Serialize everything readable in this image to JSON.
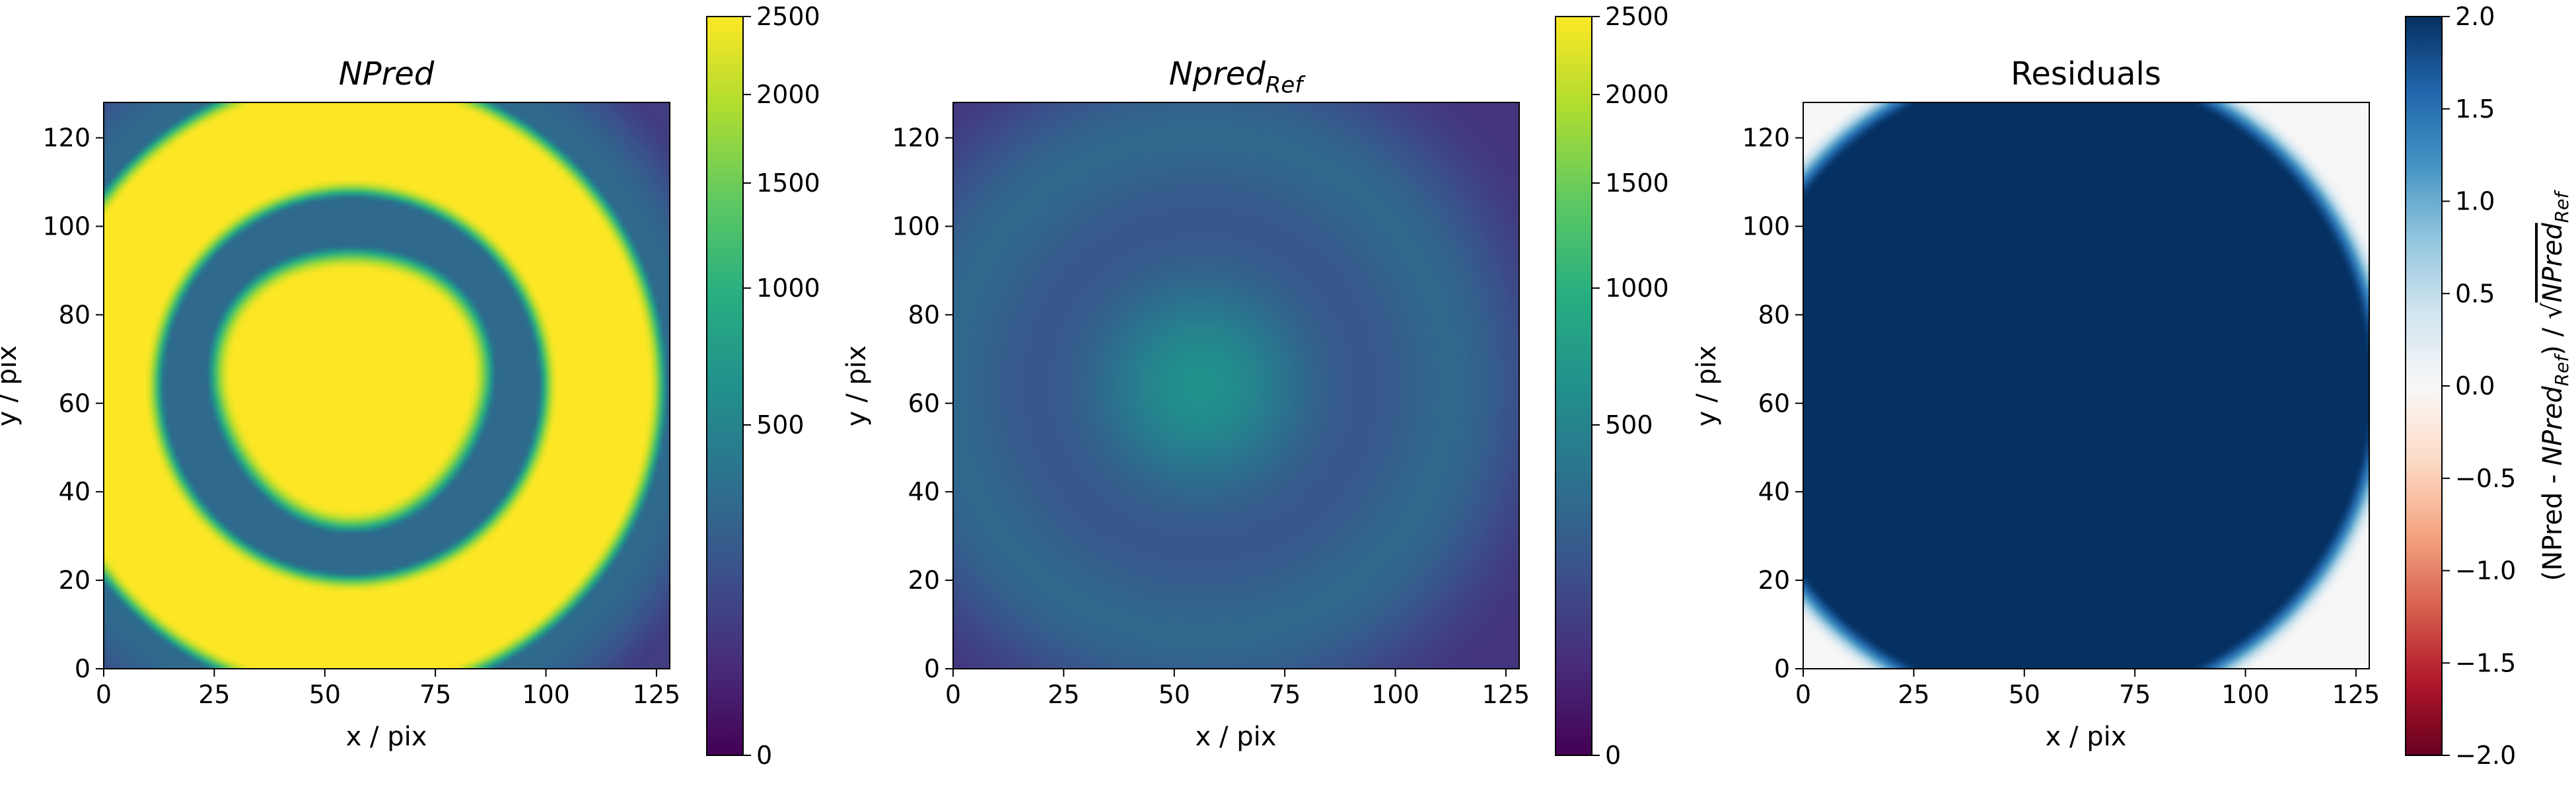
{
  "chart_data": [
    {
      "type": "heatmap",
      "title": "NPred",
      "xlabel": "x / pix",
      "ylabel": "y / pix",
      "xlim": [
        0,
        128
      ],
      "ylim": [
        0,
        128
      ],
      "x_ticks": [
        "0",
        "25",
        "50",
        "75",
        "100",
        "125"
      ],
      "y_ticks": [
        "0",
        "20",
        "40",
        "60",
        "80",
        "100",
        "120"
      ],
      "colormap": "viridis",
      "colorbar": {
        "scale": "sqrt",
        "range": [
          0,
          2500
        ],
        "ticks": [
          "0",
          "500",
          "1000",
          "1500",
          "2000",
          "2500"
        ],
        "label": ""
      },
      "grid": false,
      "description_features": {
        "center_pix": [
          56,
          64
        ],
        "inner_disk_radius_pix": 30,
        "ring_radius_pix": 57,
        "outer_edge_radius_pix": 80,
        "inner_value": 2500,
        "ring_value": 2500,
        "gap_value": 300,
        "background_value": 80
      }
    },
    {
      "type": "heatmap",
      "title": "Npred",
      "title_subscript": "Ref",
      "xlabel": "x / pix",
      "ylabel": "y / pix",
      "xlim": [
        0,
        128
      ],
      "ylim": [
        0,
        128
      ],
      "x_ticks": [
        "0",
        "25",
        "50",
        "75",
        "100",
        "125"
      ],
      "y_ticks": [
        "0",
        "20",
        "40",
        "60",
        "80",
        "100",
        "120"
      ],
      "colormap": "viridis",
      "colorbar": {
        "scale": "sqrt",
        "range": [
          0,
          2500
        ],
        "ticks": [
          "0",
          "500",
          "1000",
          "1500",
          "2000",
          "2500"
        ],
        "label": ""
      },
      "grid": false,
      "description_features": {
        "center_pix": [
          56,
          64
        ],
        "inner_peak_value": 650,
        "ring_radius_pix": 57,
        "ring_value": 290,
        "gap_value": 150,
        "background_value": 60
      }
    },
    {
      "type": "heatmap",
      "title": "Residuals",
      "xlabel": "x / pix",
      "ylabel": "y / pix",
      "xlim": [
        0,
        128
      ],
      "ylim": [
        0,
        128
      ],
      "x_ticks": [
        "0",
        "25",
        "50",
        "75",
        "100",
        "125"
      ],
      "y_ticks": [
        "0",
        "20",
        "40",
        "60",
        "80",
        "100",
        "120"
      ],
      "colormap": "RdBu",
      "colorbar": {
        "scale": "linear",
        "range": [
          -2.0,
          2.0
        ],
        "ticks": [
          "−2.0",
          "−1.5",
          "−1.0",
          "−0.5",
          "0.0",
          "0.5",
          "1.0",
          "1.5",
          "2.0"
        ],
        "label": "(NPred - NPred_Ref) / √NPred_Ref",
        "label_parts": {
          "open": "(NPred - ",
          "npred": "NPred",
          "ref": "Ref",
          "mid": ") / √",
          "denom": "NPred",
          "denom_ref": "Ref"
        }
      },
      "grid": false,
      "description_features": {
        "center_pix": [
          57,
          64
        ],
        "saturated_disk_radius_pix": 72,
        "inside_value": 2.0,
        "outside_value": 0.0
      }
    }
  ]
}
